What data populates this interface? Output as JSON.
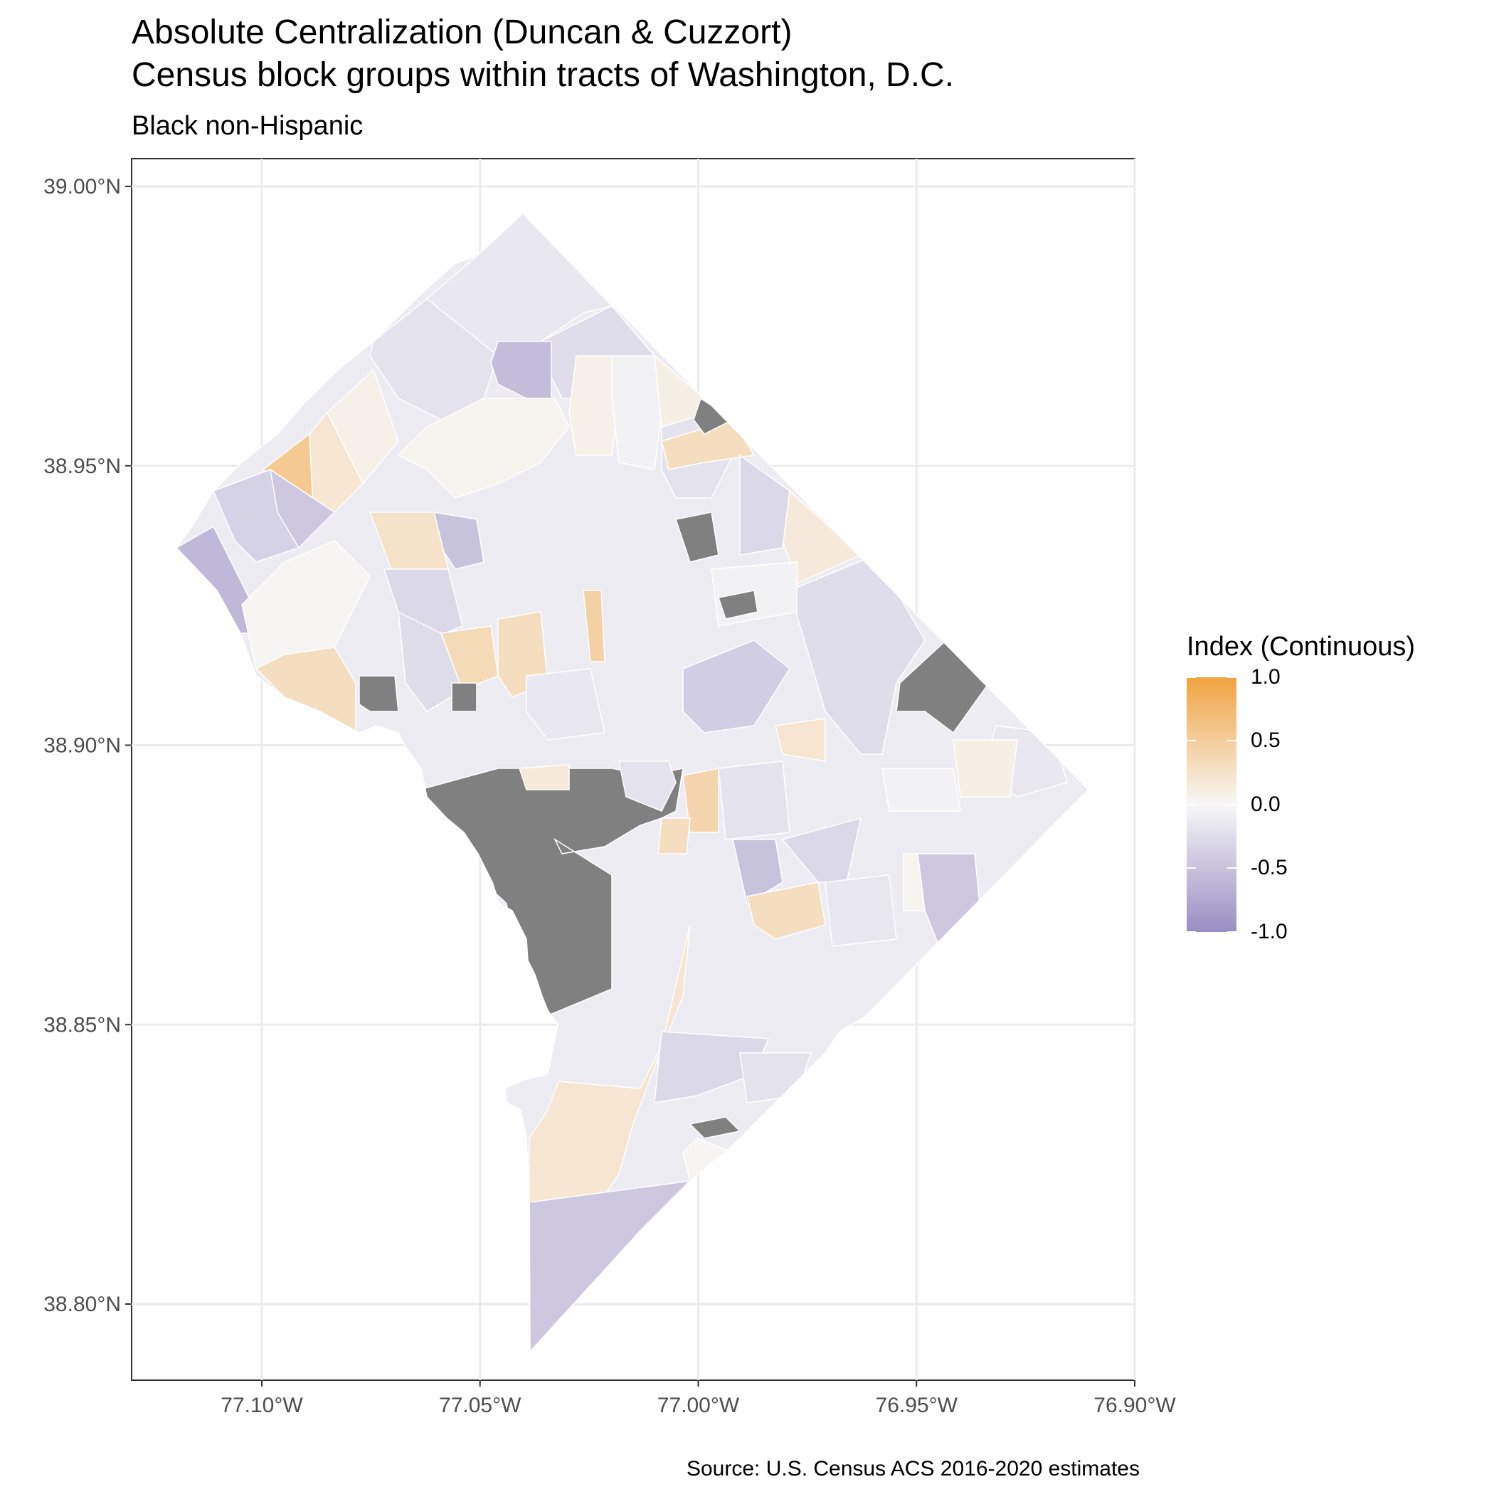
{
  "title_line1": "Absolute Centralization (Duncan & Cuzzort)",
  "title_line2": "Census block groups within tracts of Washington, D.C.",
  "subtitle": "Black non-Hispanic",
  "caption": "Source: U.S. Census ACS 2016-2020 estimates",
  "chart_data": {
    "type": "choropleth",
    "region": "Washington, D.C. census block groups",
    "lon_range": [
      -77.13,
      -76.9
    ],
    "lat_range": [
      38.78,
      39.0
    ],
    "y_ticks": [
      {
        "value": 39.0,
        "label": "39.00°N"
      },
      {
        "value": 38.95,
        "label": "38.95°N"
      },
      {
        "value": 38.9,
        "label": "38.90°N"
      },
      {
        "value": 38.85,
        "label": "38.85°N"
      },
      {
        "value": 38.8,
        "label": "38.80°N"
      }
    ],
    "x_ticks": [
      {
        "value": -77.1,
        "label": "77.10°W"
      },
      {
        "value": -77.05,
        "label": "77.05°W"
      },
      {
        "value": -77.0,
        "label": "77.00°W"
      },
      {
        "value": -76.95,
        "label": "76.95°W"
      },
      {
        "value": -76.9,
        "label": "76.90°W"
      }
    ],
    "legend": {
      "title": "Index (Continuous)",
      "range": [
        -1.0,
        1.0
      ],
      "labels": [
        "1.0",
        "0.5",
        "0.0",
        "-0.5",
        "-1.0"
      ],
      "colors": {
        "high": "#f1a340",
        "mid": "#f7f7f7",
        "low": "#998ec3",
        "na": "#808080"
      }
    },
    "regions": [
      {
        "name": "north-tip",
        "value": -0.15
      },
      {
        "name": "nw-upper-a",
        "value": -0.2
      },
      {
        "name": "nw-upper-b",
        "value": -0.25
      },
      {
        "name": "nw-purple-block",
        "value": -0.55
      },
      {
        "name": "rock-creek-upper",
        "value": 0.05
      },
      {
        "name": "upper-cent-a",
        "value": 0.08
      },
      {
        "name": "upper-cent-b",
        "value": -0.05
      },
      {
        "name": "upper-east-a",
        "value": 0.1
      },
      {
        "name": "upper-east-b",
        "value": -0.2
      },
      {
        "name": "ne-orange-strip",
        "value": 0.3
      },
      {
        "name": "ne-na-a",
        "value": null
      },
      {
        "name": "ne-slope",
        "value": 0.15
      },
      {
        "name": "ne-purple",
        "value": -0.3
      },
      {
        "name": "far-nw-orange",
        "value": 0.55
      },
      {
        "name": "far-nw-peach",
        "value": 0.2
      },
      {
        "name": "far-nw-light",
        "value": 0.08
      },
      {
        "name": "far-west-purple",
        "value": -0.6
      },
      {
        "name": "west-lavender",
        "value": -0.35
      },
      {
        "name": "west-purple-b",
        "value": -0.45
      },
      {
        "name": "palisades-white",
        "value": 0.02
      },
      {
        "name": "palisades-peach",
        "value": 0.3
      },
      {
        "name": "nw-na-small",
        "value": null
      },
      {
        "name": "nw-center-purple",
        "value": -0.5
      },
      {
        "name": "nw-center-peach",
        "value": 0.25
      },
      {
        "name": "nw-center-lav",
        "value": -0.3
      },
      {
        "name": "central-peach-a",
        "value": 0.35
      },
      {
        "name": "central-peach-b",
        "value": 0.3
      },
      {
        "name": "central-orange",
        "value": 0.45
      },
      {
        "name": "central-lav-a",
        "value": -0.25
      },
      {
        "name": "central-lav-b",
        "value": -0.15
      },
      {
        "name": "central-na",
        "value": null
      },
      {
        "name": "mid-purple",
        "value": -0.4
      },
      {
        "name": "mid-na",
        "value": null
      },
      {
        "name": "east-na-large",
        "value": null
      },
      {
        "name": "east-lav-large",
        "value": -0.25
      },
      {
        "name": "east-white",
        "value": -0.05
      },
      {
        "name": "east-peach",
        "value": 0.2
      },
      {
        "name": "east-na-strip",
        "value": null
      },
      {
        "name": "potomac-na",
        "value": null
      },
      {
        "name": "downtown-lav",
        "value": -0.2
      },
      {
        "name": "downtown-peach",
        "value": 0.15
      },
      {
        "name": "capitol-orange",
        "value": 0.4
      },
      {
        "name": "capitol-peach",
        "value": 0.3
      },
      {
        "name": "capitol-lav",
        "value": -0.2
      },
      {
        "name": "se-purple",
        "value": -0.5
      },
      {
        "name": "se-peach",
        "value": 0.3
      },
      {
        "name": "se-lav-a",
        "value": -0.3
      },
      {
        "name": "se-lav-b",
        "value": -0.15
      },
      {
        "name": "se-white",
        "value": 0.05
      },
      {
        "name": "se-purple-b",
        "value": -0.45
      },
      {
        "name": "anacostia-peach-large",
        "value": 0.2
      },
      {
        "name": "south-lav",
        "value": -0.3
      },
      {
        "name": "south-lav-b",
        "value": -0.2
      },
      {
        "name": "south-na",
        "value": null
      },
      {
        "name": "south-white",
        "value": 0.02
      },
      {
        "name": "south-purple-tip",
        "value": -0.45
      },
      {
        "name": "east-tip-lav",
        "value": -0.15
      },
      {
        "name": "east-tip-peach",
        "value": 0.1
      },
      {
        "name": "east-tip-white",
        "value": -0.05
      }
    ]
  }
}
